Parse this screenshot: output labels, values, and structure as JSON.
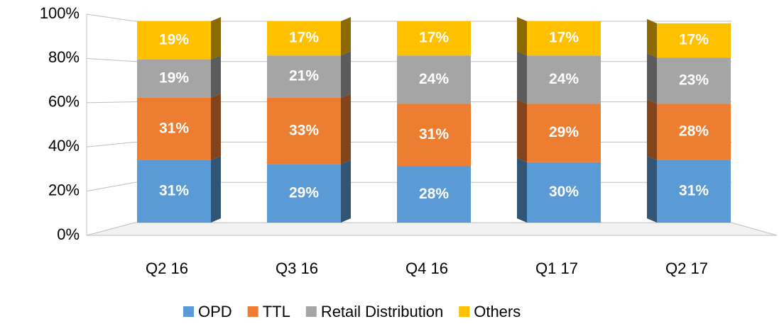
{
  "chart_data": {
    "type": "bar",
    "stacked": true,
    "categories": [
      "Q2 16",
      "Q3 16",
      "Q4 16",
      "Q1 17",
      "Q2 17"
    ],
    "series": [
      {
        "name": "OPD",
        "color": "#5b9bd5",
        "values": [
          31,
          29,
          28,
          30,
          31
        ],
        "value_labels": [
          "31%",
          "29%",
          "28%",
          "30%",
          "31%"
        ]
      },
      {
        "name": "TTL",
        "color": "#ed7d31",
        "values": [
          31,
          33,
          31,
          29,
          28
        ],
        "value_labels": [
          "31%",
          "33%",
          "31%",
          "29%",
          "28%"
        ]
      },
      {
        "name": "Retail Distribution",
        "color": "#a5a5a5",
        "values": [
          19,
          21,
          24,
          24,
          23
        ],
        "value_labels": [
          "19%",
          "21%",
          "24%",
          "24%",
          "23%"
        ]
      },
      {
        "name": "Others",
        "color": "#ffc000",
        "values": [
          19,
          17,
          17,
          17,
          17
        ],
        "value_labels": [
          "19%",
          "17%",
          "17%",
          "17%",
          "17%"
        ]
      }
    ],
    "ylim": [
      0,
      100
    ],
    "yticks": [
      {
        "value": 0,
        "label": "0%"
      },
      {
        "value": 20,
        "label": "20%"
      },
      {
        "value": 40,
        "label": "40%"
      },
      {
        "value": 60,
        "label": "60%"
      },
      {
        "value": 80,
        "label": "80%"
      },
      {
        "value": 100,
        "label": "100%"
      }
    ],
    "grid": true,
    "legend": "bottom"
  }
}
